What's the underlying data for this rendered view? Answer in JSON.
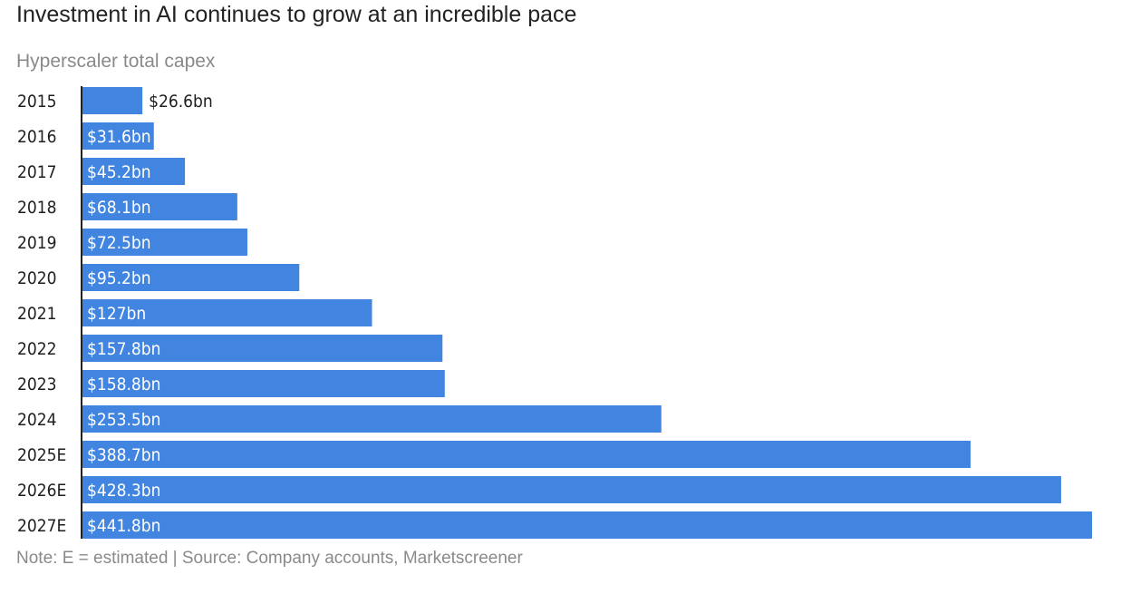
{
  "header": {
    "title": "Investment in AI continues to grow at an incredible pace",
    "subtitle": "Hyperscaler total capex"
  },
  "footer": {
    "note": "Note: E = estimated | Source: Company accounts, Marketscreener"
  },
  "colors": {
    "bar": "#4285e0",
    "axis": "#222222",
    "label_inside": "#ffffff",
    "label_outside": "#1f1f1f"
  },
  "chart_data": {
    "type": "bar",
    "orientation": "horizontal",
    "title": "Investment in AI continues to grow at an incredible pace",
    "subtitle": "Hyperscaler total capex",
    "categories": [
      "2015",
      "2016",
      "2017",
      "2018",
      "2019",
      "2020",
      "2021",
      "2022",
      "2023",
      "2024",
      "2025E",
      "2026E",
      "2027E"
    ],
    "values": [
      26.6,
      31.6,
      45.2,
      68.1,
      72.5,
      95.2,
      127,
      157.8,
      158.8,
      253.5,
      388.7,
      428.3,
      441.8
    ],
    "data_labels": [
      "$26.6bn",
      "$31.6bn",
      "$45.2bn",
      "$68.1bn",
      "$72.5bn",
      "$95.2bn",
      "$127bn",
      "$157.8bn",
      "$158.8bn",
      "$253.5bn",
      "$388.7bn",
      "$428.3bn",
      "$441.8bn"
    ],
    "unit": "$bn",
    "xlim": [
      0,
      441.8
    ],
    "grid": false,
    "legend": "none"
  }
}
